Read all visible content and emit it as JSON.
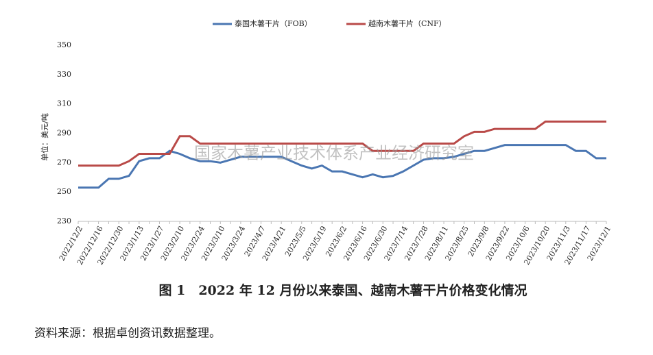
{
  "chart_data": {
    "type": "line",
    "title": "图 1　2022 年 12 月份以来泰国、越南木薯干片价格变化情况",
    "source": "资料来源：根据卓创资讯数据整理。",
    "watermark": "国家木薯产业技术体系产业经济研究室",
    "y_label": "单位：美元/吨",
    "categories": [
      "2022/12/2",
      null,
      "2022/12/16",
      null,
      "2022/12/30",
      null,
      "2023/1/13",
      null,
      "2023/1/27",
      null,
      "2023/2/10",
      null,
      "2023/2/24",
      null,
      "2023/3/10",
      null,
      "2023/3/24",
      null,
      "2023/4/7",
      null,
      "2023/4/21",
      null,
      "2023/5/5",
      null,
      "2023/5/19",
      null,
      "2023/6/2",
      null,
      "2023/6/16",
      null,
      "2023/6/30",
      null,
      "2023/7/14",
      null,
      "2023/7/28",
      null,
      "2023/8/11",
      null,
      "2023/8/25",
      null,
      "2023/9/8",
      null,
      "2023/9/22",
      null,
      "2023/10/6",
      null,
      "2023/10/20",
      null,
      "2023/11/3",
      null,
      "2023/11/17",
      null,
      "2023/12/1"
    ],
    "series": [
      {
        "name": "泰国木薯干片（FOB）",
        "color": "#4a76b2",
        "values": [
          253,
          253,
          253,
          259,
          259,
          261,
          271,
          273,
          273,
          278,
          276,
          273,
          271,
          271,
          270,
          272,
          274,
          274,
          274,
          274,
          274,
          271,
          268,
          266,
          268,
          264,
          264,
          262,
          260,
          262,
          260,
          261,
          264,
          268,
          272,
          273,
          273,
          274,
          276,
          278,
          278,
          280,
          282,
          282,
          282,
          282,
          282,
          282,
          282,
          278,
          278,
          273,
          273
        ]
      },
      {
        "name": "越南木薯干片（CNF）",
        "color": "#b94a48",
        "values": [
          268,
          268,
          268,
          268,
          268,
          271,
          276,
          276,
          276,
          276,
          288,
          288,
          283,
          283,
          283,
          283,
          283,
          283,
          283,
          283,
          283,
          283,
          283,
          283,
          283,
          283,
          283,
          283,
          283,
          278,
          278,
          278,
          278,
          278,
          283,
          283,
          283,
          283,
          288,
          291,
          291,
          293,
          293,
          293,
          293,
          293,
          298,
          298,
          298,
          298,
          298,
          298,
          298
        ]
      }
    ],
    "ylim": [
      230,
      350
    ],
    "yticks": [
      230,
      250,
      270,
      290,
      310,
      330,
      350
    ]
  }
}
